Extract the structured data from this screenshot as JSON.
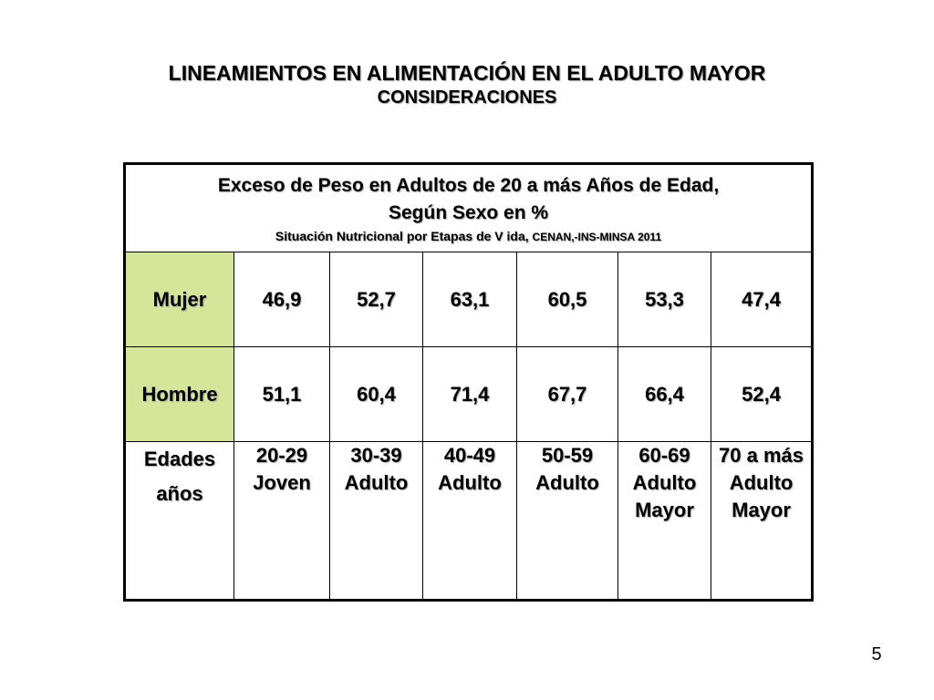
{
  "slide": {
    "title": "LINEAMIENTOS EN ALIMENTACIÓN EN EL ADULTO MAYOR",
    "subtitle": "CONSIDERACIONES",
    "page_number": "5"
  },
  "table": {
    "header_title_line1": "Exceso de Peso en Adultos de 20 a más Años de Edad,",
    "header_title_line2": "Según Sexo en %",
    "header_source_main": "Situación Nutricional por Etapas de V ida,",
    "header_source_org": "CENAN,-INS-MINSA 2011",
    "rows": [
      {
        "label": "Mujer",
        "values": [
          "46,9",
          "52,7",
          "63,1",
          "60,5",
          "53,3",
          "47,4"
        ]
      },
      {
        "label": "Hombre",
        "values": [
          "51,1",
          "60,4",
          "71,4",
          "67,7",
          "66,4",
          "52,4"
        ]
      }
    ],
    "ages_label_line1": "Edades",
    "ages_label_line2": "años",
    "ages": [
      {
        "range": "20-29",
        "stage": "Joven"
      },
      {
        "range": "30-39",
        "stage": "Adulto"
      },
      {
        "range": "40-49",
        "stage": "Adulto"
      },
      {
        "range": "50-59",
        "stage": "Adulto"
      },
      {
        "range": "60-69",
        "stage": "Adulto Mayor"
      },
      {
        "range": "70 a más",
        "stage": "Adulto Mayor"
      }
    ],
    "colors": {
      "label_cell_bg": "#d5e69a",
      "border": "#000000"
    }
  }
}
